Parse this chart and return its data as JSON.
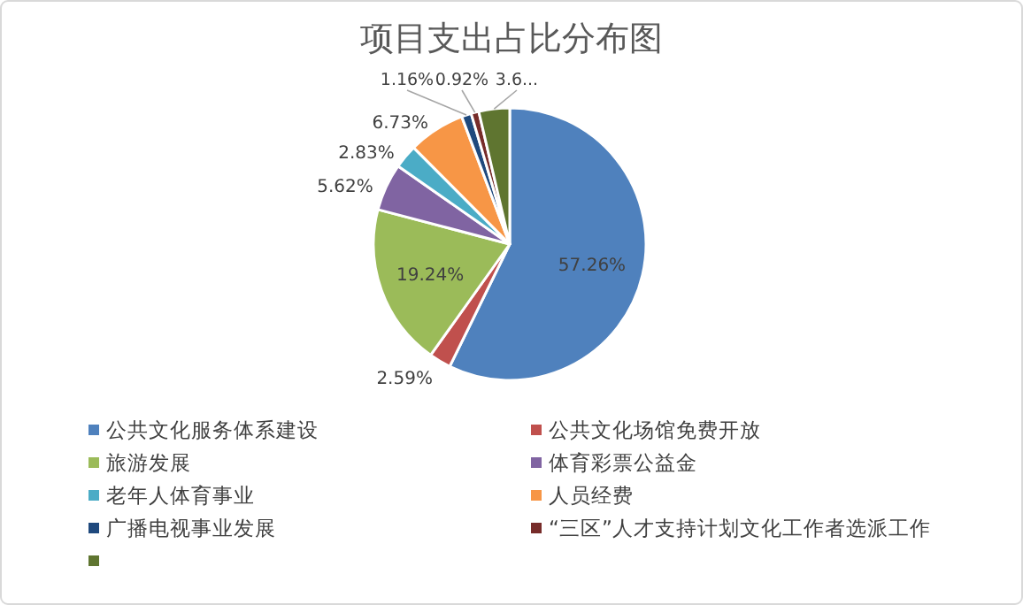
{
  "chart_data": {
    "type": "pie",
    "title": "项目支出占比分布图",
    "categories": [
      "公共文化服务体系建设",
      "公共文化场馆免费开放",
      "旅游发展",
      "体育彩票公益金",
      "老年人体育事业",
      "人员经费",
      "广播电视事业发展",
      "“三区”人才支持计划文化工作者选派工作",
      null
    ],
    "values": [
      57.26,
      2.59,
      19.24,
      5.62,
      2.83,
      6.73,
      1.16,
      0.92,
      3.65
    ],
    "value_labels": [
      "57.26%",
      "2.59%",
      "19.24%",
      "5.62%",
      "2.83%",
      "6.73%",
      "1.16%",
      "0.92%",
      "3.6..."
    ],
    "colors": [
      "#4f81bd",
      "#c0504d",
      "#9bbb59",
      "#8064a2",
      "#4bacc6",
      "#f79646",
      "#1f497d",
      "#772c2a",
      "#5f7530"
    ],
    "legend": "bottom"
  }
}
